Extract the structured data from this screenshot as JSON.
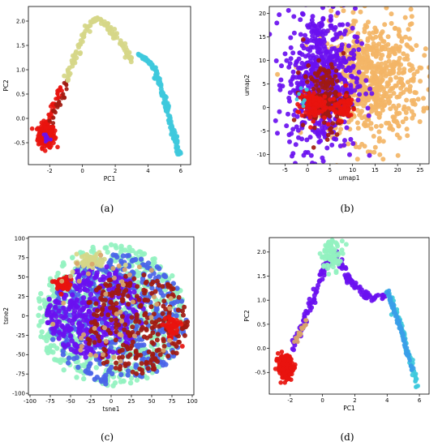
{
  "captions": [
    "(a)",
    "(b)",
    "(c)",
    "(d)"
  ],
  "colors": {
    "red": "#e8140e",
    "darkred": "#a11a10",
    "purple": "#6a10f0",
    "blue": "#4a64e8",
    "cyan": "#3ec9dc",
    "skyblue": "#3a9ee8",
    "olive": "#d6d788",
    "orange": "#f3b566",
    "mint": "#93f2c0",
    "tan": "#d9a56a"
  },
  "chart_data": [
    {
      "id": "a",
      "type": "scatter",
      "title": "",
      "xlabel": "PC1",
      "ylabel": "PC2",
      "xlim": [
        -3.3,
        6.6
      ],
      "ylim": [
        -0.95,
        2.3
      ],
      "xticks": [
        -2,
        0,
        2,
        4,
        6
      ],
      "yticks": [
        -0.5,
        0.0,
        0.5,
        1.0,
        1.5,
        2.0
      ],
      "ytick_labels": [
        "-0.5",
        "0.0",
        "0.5",
        "1.0",
        "1.5",
        "2.0"
      ],
      "grid": false,
      "series": [
        {
          "color": "red",
          "kind": "blob",
          "cx": -2.2,
          "cy": -0.35,
          "sx": 0.25,
          "sy": 0.12,
          "n": 220,
          "size": 2.8
        },
        {
          "color": "red",
          "kind": "path",
          "points": [
            [
              -2.4,
              -0.3
            ],
            [
              -1.8,
              0.15
            ],
            [
              -1.3,
              0.65
            ]
          ],
          "n": 40,
          "spread": 0.08,
          "size": 2.6
        },
        {
          "color": "darkred",
          "kind": "path",
          "points": [
            [
              -2.0,
              -0.1
            ],
            [
              -1.2,
              0.45
            ],
            [
              -0.9,
              0.8
            ]
          ],
          "n": 22,
          "spread": 0.07,
          "size": 2.6
        },
        {
          "color": "olive",
          "kind": "path",
          "points": [
            [
              -1.0,
              0.8
            ],
            [
              0.3,
              1.9
            ],
            [
              1.0,
              2.1
            ],
            [
              2.2,
              1.6
            ],
            [
              3.0,
              1.2
            ]
          ],
          "n": 110,
          "spread": 0.09,
          "size": 3.0
        },
        {
          "color": "cyan",
          "kind": "path",
          "points": [
            [
              3.5,
              1.3
            ],
            [
              4.3,
              1.1
            ],
            [
              5.0,
              0.4
            ],
            [
              5.7,
              -0.5
            ],
            [
              5.9,
              -0.75
            ]
          ],
          "n": 140,
          "spread": 0.06,
          "size": 3.0
        },
        {
          "color": "purple",
          "kind": "blob",
          "cx": -2.2,
          "cy": -0.4,
          "sx": 0.15,
          "sy": 0.08,
          "n": 12,
          "size": 2.4
        }
      ]
    },
    {
      "id": "b",
      "type": "scatter",
      "title": "",
      "xlabel": "umap1",
      "ylabel": "umap2",
      "xlim": [
        -8.5,
        27
      ],
      "ylim": [
        -12,
        21.5
      ],
      "xticks": [
        -5,
        0,
        5,
        10,
        15,
        20,
        25
      ],
      "yticks": [
        -10,
        -5,
        0,
        5,
        10,
        15,
        20
      ],
      "ytick_labels": [
        "-10",
        "-5",
        "0",
        "5",
        "10",
        "15",
        "20"
      ],
      "grid": false,
      "series": [
        {
          "color": "orange",
          "kind": "blob",
          "cx": 14,
          "cy": 6,
          "sx": 5.5,
          "sy": 6.5,
          "n": 700,
          "size": 3.0
        },
        {
          "color": "purple",
          "kind": "blob",
          "cx": 3,
          "cy": 6,
          "sx": 3.8,
          "sy": 7.5,
          "n": 650,
          "size": 3.0
        },
        {
          "color": "darkred",
          "kind": "blob",
          "cx": 4,
          "cy": 2,
          "sx": 2.5,
          "sy": 3.5,
          "n": 160,
          "size": 2.8
        },
        {
          "color": "red",
          "kind": "blob",
          "cx": 1,
          "cy": 0.5,
          "sx": 1.6,
          "sy": 1.6,
          "n": 90,
          "size": 2.8
        },
        {
          "color": "red",
          "kind": "blob",
          "cx": 8,
          "cy": 0,
          "sx": 1.3,
          "sy": 1.3,
          "n": 60,
          "size": 2.8
        },
        {
          "color": "cyan",
          "kind": "blob",
          "cx": -1.5,
          "cy": 3,
          "sx": 0.8,
          "sy": 1.5,
          "n": 8,
          "size": 2.4
        }
      ]
    },
    {
      "id": "c",
      "type": "scatter",
      "title": "",
      "xlabel": "tsne1",
      "ylabel": "tsne2",
      "xlim": [
        -102,
        102
      ],
      "ylim": [
        -102,
        102
      ],
      "xticks": [
        -100,
        -75,
        -50,
        -25,
        0,
        25,
        50,
        75,
        100
      ],
      "yticks": [
        -100,
        -75,
        -50,
        -25,
        0,
        25,
        50,
        75,
        100
      ],
      "ytick_labels": [
        "-100",
        "-75",
        "-50",
        "-25",
        "0",
        "25",
        "50",
        "75",
        "100"
      ],
      "grid": false,
      "series": [
        {
          "color": "mint",
          "kind": "disc",
          "cx": 0,
          "cy": 0,
          "r": 92,
          "n": 700,
          "size": 3.2
        },
        {
          "color": "blue",
          "kind": "disc",
          "cx": 8,
          "cy": -5,
          "r": 85,
          "n": 450,
          "size": 3.2
        },
        {
          "color": "purple",
          "kind": "disc",
          "cx": -20,
          "cy": 5,
          "r": 60,
          "n": 360,
          "size": 3.2
        },
        {
          "color": "darkred",
          "kind": "disc",
          "cx": 30,
          "cy": -10,
          "r": 65,
          "n": 260,
          "size": 3.0
        },
        {
          "color": "red",
          "kind": "blob",
          "cx": -60,
          "cy": 40,
          "sx": 6,
          "sy": 5,
          "n": 40,
          "size": 3.0
        },
        {
          "color": "red",
          "kind": "blob",
          "cx": 75,
          "cy": -15,
          "sx": 5,
          "sy": 8,
          "n": 45,
          "size": 3.0
        },
        {
          "color": "olive",
          "kind": "blob",
          "cx": -25,
          "cy": 70,
          "sx": 10,
          "sy": 5,
          "n": 50,
          "size": 3.0
        },
        {
          "color": "tan",
          "kind": "disc",
          "cx": 0,
          "cy": 0,
          "r": 80,
          "n": 45,
          "size": 3.0
        }
      ]
    },
    {
      "id": "d",
      "type": "scatter",
      "title": "",
      "xlabel": "PC1",
      "ylabel": "PC2",
      "xlim": [
        -3.3,
        6.6
      ],
      "ylim": [
        -0.95,
        2.3
      ],
      "xticks": [
        -2,
        0,
        2,
        4,
        6
      ],
      "yticks": [
        -0.5,
        0.0,
        0.5,
        1.0,
        1.5,
        2.0
      ],
      "ytick_labels": [
        "-0.5",
        "0.0",
        "0.5",
        "1.0",
        "1.5",
        "2.0"
      ],
      "grid": false,
      "series": [
        {
          "color": "red",
          "kind": "blob",
          "cx": -2.3,
          "cy": -0.38,
          "sx": 0.22,
          "sy": 0.12,
          "n": 220,
          "size": 2.8
        },
        {
          "color": "purple",
          "kind": "path",
          "points": [
            [
              -2.0,
              -0.1
            ],
            [
              -1.0,
              0.7
            ],
            [
              0.0,
              1.6
            ],
            [
              0.8,
              2.0
            ],
            [
              1.5,
              1.5
            ],
            [
              2.8,
              1.05
            ],
            [
              3.9,
              1.1
            ]
          ],
          "n": 150,
          "spread": 0.1,
          "size": 3.0
        },
        {
          "color": "mint",
          "kind": "blob",
          "cx": 0.6,
          "cy": 1.95,
          "sx": 0.35,
          "sy": 0.15,
          "n": 70,
          "size": 3.0
        },
        {
          "color": "tan",
          "kind": "path",
          "points": [
            [
              -1.7,
              0.1
            ],
            [
              -1.0,
              0.6
            ]
          ],
          "n": 20,
          "spread": 0.06,
          "size": 2.6
        },
        {
          "color": "cyan",
          "kind": "path",
          "points": [
            [
              4.0,
              1.25
            ],
            [
              4.9,
              0.4
            ],
            [
              5.7,
              -0.55
            ],
            [
              5.9,
              -0.78
            ]
          ],
          "n": 80,
          "spread": 0.07,
          "size": 2.8
        },
        {
          "color": "skyblue",
          "kind": "path",
          "points": [
            [
              4.0,
              1.2
            ],
            [
              4.9,
              0.35
            ],
            [
              5.6,
              -0.5
            ]
          ],
          "n": 110,
          "spread": 0.045,
          "size": 2.6
        }
      ]
    }
  ]
}
